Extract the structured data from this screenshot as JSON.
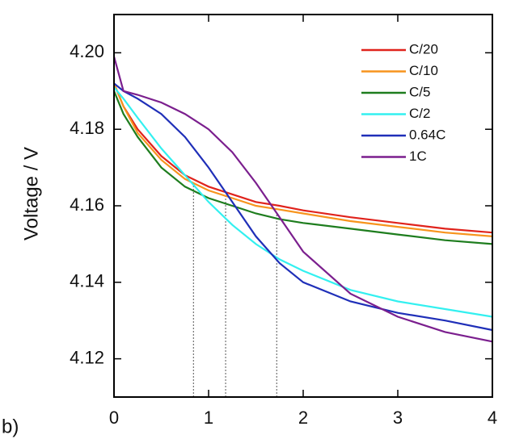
{
  "chart_data": {
    "type": "line",
    "y_label": "Voltage / V",
    "panel_label": "b)",
    "x": [
      0,
      0.1,
      0.25,
      0.5,
      0.75,
      1,
      1.25,
      1.5,
      1.75,
      2,
      2.5,
      3,
      3.5,
      4
    ],
    "series": [
      {
        "name": "C/20",
        "color": "#e0231c",
        "values": [
          4.192,
          4.186,
          4.18,
          4.173,
          4.168,
          4.165,
          4.163,
          4.161,
          4.16,
          4.1588,
          4.157,
          4.1555,
          4.154,
          4.153
        ]
      },
      {
        "name": "C/10",
        "color": "#f7941d",
        "values": [
          4.192,
          4.186,
          4.179,
          4.172,
          4.167,
          4.164,
          4.162,
          4.16,
          4.159,
          4.158,
          4.156,
          4.1545,
          4.153,
          4.152
        ]
      },
      {
        "name": "C/5",
        "color": "#1e7d1e",
        "values": [
          4.19,
          4.184,
          4.178,
          4.17,
          4.165,
          4.162,
          4.16,
          4.158,
          4.1565,
          4.1555,
          4.154,
          4.1525,
          4.151,
          4.15
        ]
      },
      {
        "name": "C/2",
        "color": "#33f0f0",
        "values": [
          4.191,
          4.188,
          4.183,
          4.175,
          4.168,
          4.161,
          4.155,
          4.15,
          4.146,
          4.143,
          4.138,
          4.135,
          4.133,
          4.131
        ]
      },
      {
        "name": "0.64C",
        "color": "#1f2fb8",
        "values": [
          4.192,
          4.19,
          4.188,
          4.184,
          4.178,
          4.17,
          4.161,
          4.152,
          4.145,
          4.14,
          4.135,
          4.132,
          4.13,
          4.1275
        ]
      },
      {
        "name": "1C",
        "color": "#7b1f8e",
        "values": [
          4.199,
          4.19,
          4.189,
          4.187,
          4.184,
          4.18,
          4.174,
          4.166,
          4.157,
          4.148,
          4.137,
          4.131,
          4.127,
          4.1245
        ]
      }
    ],
    "guides": [
      {
        "x": 0.84,
        "y": 4.1655
      },
      {
        "x": 1.18,
        "y": 4.1625
      },
      {
        "x": 1.72,
        "y": 4.158
      }
    ],
    "xlim": [
      0,
      4
    ],
    "xticks": [
      0,
      1,
      2,
      3,
      4
    ],
    "ylim": [
      4.11,
      4.21
    ],
    "yticks": [
      {
        "value": 4.12,
        "label": "4.12"
      },
      {
        "value": 4.14,
        "label": "4.14"
      },
      {
        "value": 4.16,
        "label": "4.16"
      },
      {
        "value": 4.18,
        "label": "4.18"
      },
      {
        "value": 4.2,
        "label": "4.20"
      }
    ],
    "legend": "upper right",
    "grid": false
  }
}
